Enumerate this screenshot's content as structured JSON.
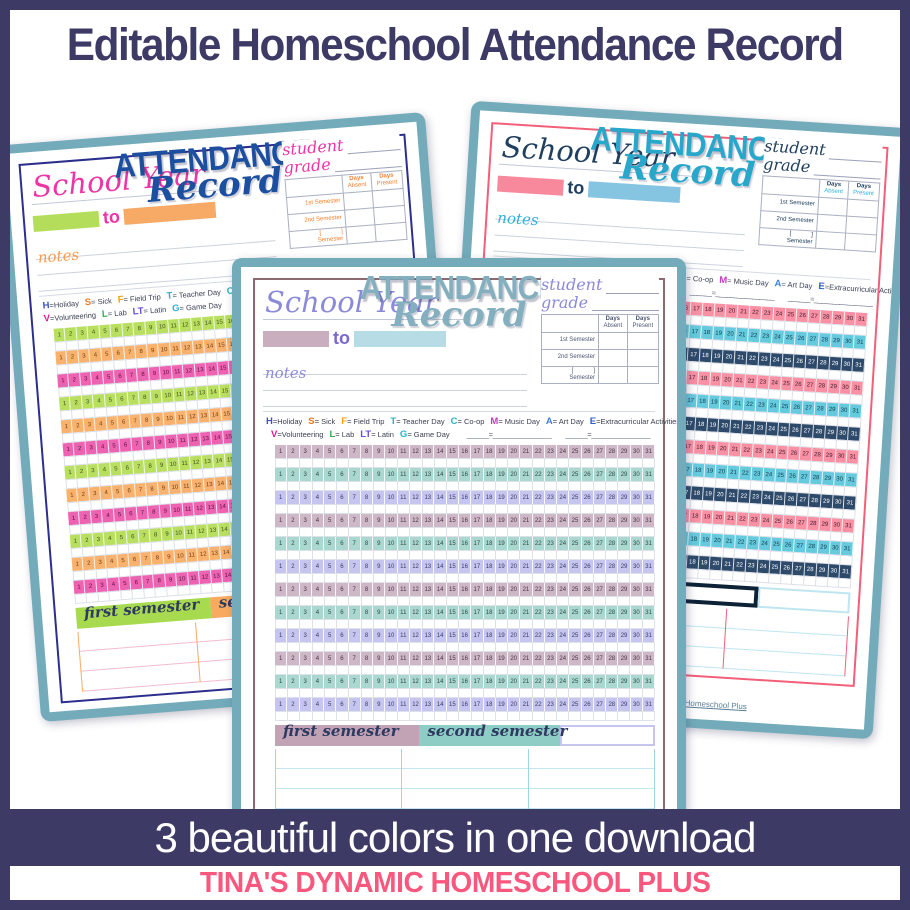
{
  "title": "Editable Homeschool Attendance Record",
  "footer": {
    "banner": "3 beautiful colors in one download",
    "brand": "TINA'S DYNAMIC HOMESCHOOL PLUS"
  },
  "sheet": {
    "school_year": "School Year",
    "to": "to",
    "attendance": "ATTENDANCE",
    "record": "Record",
    "student": "student",
    "grade": "grade",
    "days_col1": [
      "Days",
      "Absent"
    ],
    "days_col2": [
      "Days",
      "Present"
    ],
    "semester_rows": [
      "1st Semester",
      "2nd Semester"
    ],
    "bracket_row": {
      "bracket": "[            ]",
      "label": "Semester"
    },
    "notes": "notes",
    "legend_row1": [
      {
        "key": "H",
        "label": "=Holiday",
        "color": "#3f51c1"
      },
      {
        "key": "S",
        "label": "= Sick",
        "color": "#f07820"
      },
      {
        "key": "F",
        "label": "= Field Trip",
        "color": "#f5a018"
      },
      {
        "key": "T",
        "label": "= Teacher Day",
        "color": "#2ab0c0"
      },
      {
        "key": "C",
        "label": "= Co-op",
        "color": "#2ab0c0"
      },
      {
        "key": "M",
        "label": "= Music Day",
        "color": "#c23cc2"
      },
      {
        "key": "A",
        "label": "= Art Day",
        "color": "#3f7fd6"
      },
      {
        "key": "E",
        "label": "=Extracurricular Activities",
        "color": "#2f5fc8"
      }
    ],
    "legend_row2": [
      {
        "key": "V",
        "label": "=Volunteering",
        "color": "#e8168e"
      },
      {
        "key": "L",
        "label": "= Lab",
        "color": "#2fae52"
      },
      {
        "key": "LT",
        "label": "= Latin",
        "color": "#6b4fd8"
      },
      {
        "key": "G",
        "label": "= Game Day",
        "color": "#24b4cc"
      }
    ],
    "legend_blanks": [
      "______=________________",
      "______=________________"
    ],
    "days": [
      1,
      2,
      3,
      4,
      5,
      6,
      7,
      8,
      9,
      10,
      11,
      12,
      13,
      14,
      15,
      16,
      17,
      18,
      19,
      20,
      21,
      22,
      23,
      24,
      25,
      26,
      27,
      28,
      29,
      30,
      31
    ],
    "month_rows": 12,
    "banner_first": "first semester",
    "banner_second": "second semester",
    "copyright": "©Tina Robertson | Tina's Dynamic Homeschool Plus"
  },
  "themes": [
    {
      "name": "rainbow",
      "frame": "#73abba",
      "inner_border": "#2b2e8c",
      "script": "#ee35a5",
      "notes": "#f79b4f",
      "attendance": "#1c4fa0",
      "to_text": "#ee35a5",
      "to_blocks": [
        "#b5dd5c",
        "#f7aa66"
      ],
      "table_label": "#f08030",
      "table_accent": "#f08030",
      "row_colors": [
        "#b9df60",
        "#f8b26e",
        "#ee62b2"
      ],
      "row_text": [
        "#3f4d1e",
        "#6b3c14",
        "#55123a"
      ],
      "banner": {
        "first_bg": "#a8da4f",
        "second_bg": "#f8aa60",
        "second_outline": false,
        "third_border": "#b9df60"
      },
      "bottom_line": "#f3bcd0",
      "bottom_divider": "#f8aa60"
    },
    {
      "name": "muted-purple",
      "frame": "#73abba",
      "inner_border": "#8c6a70",
      "script": "#8a8ad8",
      "notes": "#8a8ad8",
      "attendance": "#83afbe",
      "to_text": "#7a68cc",
      "to_blocks": [
        "#c9aec0",
        "#b7dce6"
      ],
      "table_label": "#4a5570",
      "table_accent": "#4a5570",
      "row_colors": [
        "#ceb7c7",
        "#aad7d0",
        "#c6c5f0"
      ],
      "row_text": [
        "#4a3544",
        "#2e4a46",
        "#3a3a66"
      ],
      "banner": {
        "first_bg": "#c2a3b6",
        "second_bg": "#8ecdc5",
        "second_outline": false,
        "third_border": "#c6c5f0"
      },
      "bottom_line": "#c2e6f0",
      "bottom_divider": "#9ed6e6"
    },
    {
      "name": "pink-blue",
      "frame": "#73abba",
      "inner_border": "#f25f78",
      "script": "#21405f",
      "notes": "#2ab2d8",
      "attendance": "#28a7cb",
      "to_text": "#21405f",
      "to_blocks": [
        "#f8899c",
        "#86c5e2"
      ],
      "table_label": "#21405f",
      "table_accent": "#2ab2d8",
      "row_colors": [
        "#f990a3",
        "#65cade",
        "#2e4a6b"
      ],
      "row_text": [
        "#411f32",
        "#143c4a",
        "#ffffff"
      ],
      "banner": {
        "first_bg": "#49c2d8",
        "second_bg": "#ffffff",
        "second_outline": true,
        "third_border": "#bfe6f0"
      },
      "bottom_line": "#bfe6f0",
      "bottom_divider": "#f25f78"
    }
  ]
}
